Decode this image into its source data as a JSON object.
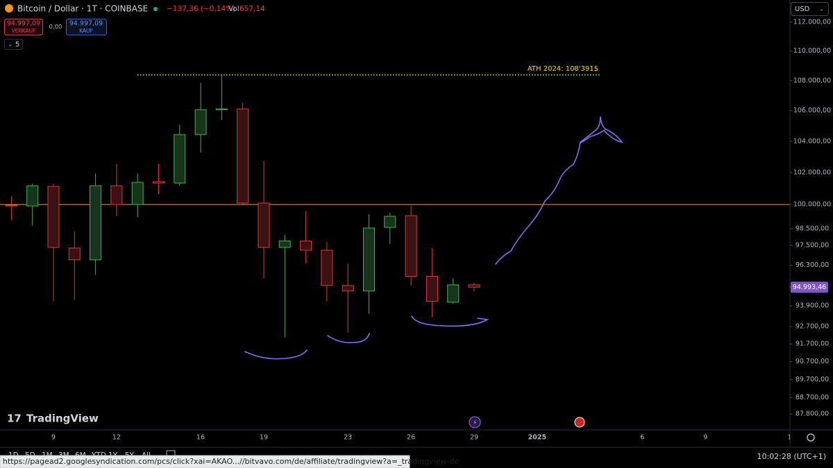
{
  "header": {
    "symbol": "Bitcoin / Dollar · 1T · COINBASE",
    "change": "−137,36 (−0,14%)",
    "vol_label": "Vol",
    "vol": "657,14"
  },
  "trade": {
    "sell_price": "94.997,09",
    "sell_label": "VERKAUF",
    "spread": "0,00",
    "buy_price": "94.997,09",
    "buy_label": "KAUF"
  },
  "indicators_count": "5",
  "currency": "USD",
  "logo": "TradingView",
  "toolbar": {
    "ranges": [
      "1D",
      "5D",
      "1M",
      "3M",
      "6M",
      "YTD",
      "1Y",
      "5Y",
      "All"
    ],
    "time": "10:02:28 (UTC+1)"
  },
  "status_url": "https://pagead2.googlesyndication.com/pcs/click?xai=AKAO...//bitvavo.com/de/affiliate/tradingview?a=_tradingview-de",
  "chart_data": {
    "type": "candlestick",
    "categories": [
      null,
      null,
      "9",
      null,
      null,
      "12",
      null,
      null,
      null,
      "16",
      null,
      null,
      "19",
      null,
      null,
      null,
      "23",
      null,
      null,
      "26",
      null,
      null,
      "29",
      null,
      null,
      "2025",
      null,
      null,
      null,
      null,
      "6",
      null,
      null,
      "9",
      null,
      null,
      null,
      "1"
    ],
    "open": [
      99960,
      99910,
      101130,
      97330,
      96620,
      101170,
      100000,
      101430,
      101340,
      104440,
      106070,
      106120,
      100090,
      97370,
      97760,
      97200,
      95090,
      94770,
      98590,
      99310,
      95640,
      94110,
      95130,
      null,
      null,
      null,
      null,
      null,
      null,
      null,
      null,
      null,
      null,
      null,
      null,
      null,
      null,
      null
    ],
    "high": [
      100520,
      101300,
      101300,
      98340,
      101950,
      102570,
      101950,
      102570,
      105070,
      107860,
      108380,
      106530,
      102750,
      98130,
      99570,
      97700,
      96410,
      99400,
      99490,
      99910,
      97330,
      95510,
      95260,
      null,
      null,
      null,
      null,
      null,
      null,
      null,
      null,
      null,
      null,
      null,
      null,
      null,
      null,
      null
    ],
    "low": [
      99020,
      98720,
      94160,
      94240,
      95720,
      99270,
      99230,
      100650,
      101170,
      103280,
      105390,
      99960,
      95510,
      92070,
      96410,
      94160,
      92350,
      93440,
      97580,
      95090,
      93240,
      94030,
      94730,
      null,
      null,
      null,
      null,
      null,
      null,
      null,
      null,
      null,
      null,
      null,
      null,
      null,
      null,
      null
    ],
    "close": [
      99910,
      101170,
      97370,
      96620,
      101170,
      100000,
      101390,
      101340,
      104440,
      106070,
      106120,
      100090,
      97370,
      97760,
      97200,
      95090,
      94770,
      98550,
      99270,
      95640,
      94160,
      95130,
      94993.46,
      null,
      null,
      null,
      null,
      null,
      null,
      null,
      null,
      null,
      null,
      null,
      null,
      null,
      null,
      null
    ],
    "up_color": "#4caf50",
    "down_color": "#e53935",
    "ylim": [
      86935,
      113550
    ],
    "log_scale": true,
    "yticks": [
      {
        "value": 112000,
        "label": "112.000,00"
      },
      {
        "value": 110000,
        "label": "110.000,00"
      },
      {
        "value": 108000,
        "label": "108.000,00"
      },
      {
        "value": 106000,
        "label": "106.000,00"
      },
      {
        "value": 104000,
        "label": "104.000,00"
      },
      {
        "value": 102000,
        "label": "102.000,00"
      },
      {
        "value": 100000,
        "label": "100.000,00"
      },
      {
        "value": 98500,
        "label": "98.500,00"
      },
      {
        "value": 97500,
        "label": "97.500,00"
      },
      {
        "value": 96300,
        "label": "96.300,00"
      },
      {
        "value": 93900,
        "label": "93.900,00"
      },
      {
        "value": 92700,
        "label": "92.700,00"
      },
      {
        "value": 91700,
        "label": "91.700,00"
      },
      {
        "value": 90700,
        "label": "90.700,00"
      },
      {
        "value": 89700,
        "label": "89.700,00"
      },
      {
        "value": 88700,
        "label": "88.700,00"
      },
      {
        "value": 87800,
        "label": "87.800,00"
      }
    ],
    "last_price": {
      "value": 94993.46,
      "label": "94.993,46",
      "color": "#7e57c2"
    },
    "hline": {
      "value": 100000,
      "color": "#f2a03d"
    },
    "annotation": {
      "text": "ATH 2024: 108'391$",
      "value": 108391,
      "color": "#f5d94a"
    }
  }
}
